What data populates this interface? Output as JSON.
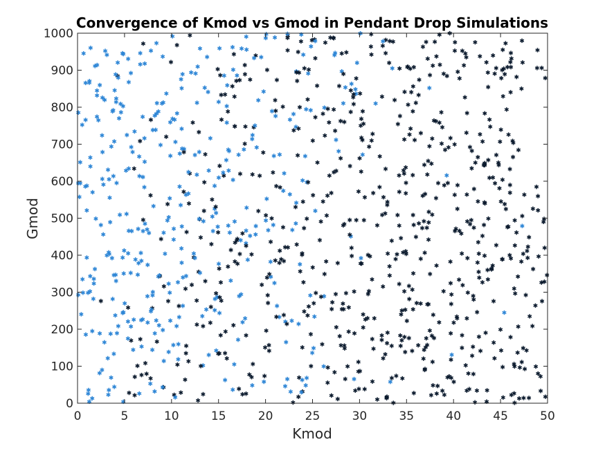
{
  "chart_data": {
    "type": "scatter",
    "title": "Convergence of Kmod vs Gmod in Pendant Drop Simulations",
    "xlabel": "Kmod",
    "ylabel": "Gmod",
    "xlim": [
      0,
      50
    ],
    "ylim": [
      0,
      1000
    ],
    "xticks": [
      "0",
      "5",
      "10",
      "15",
      "20",
      "25",
      "30",
      "35",
      "40",
      "45",
      "50"
    ],
    "yticks": [
      "0",
      "100",
      "200",
      "300",
      "400",
      "500",
      "600",
      "700",
      "800",
      "900",
      "1000"
    ],
    "grid": false,
    "legend": "none",
    "marker": "asterisk",
    "colors": {
      "converged": "#2e86d6",
      "not_converged": "#0c1b2e"
    },
    "point_count_per_series": 540,
    "rule": "blue points dominate low Kmod, dark points dominate high Kmod",
    "series": [
      {
        "name": "",
        "color": "#2e86d6",
        "seed": 11
      },
      {
        "name": "",
        "color": "#0c1b2e",
        "seed": 29
      }
    ]
  }
}
